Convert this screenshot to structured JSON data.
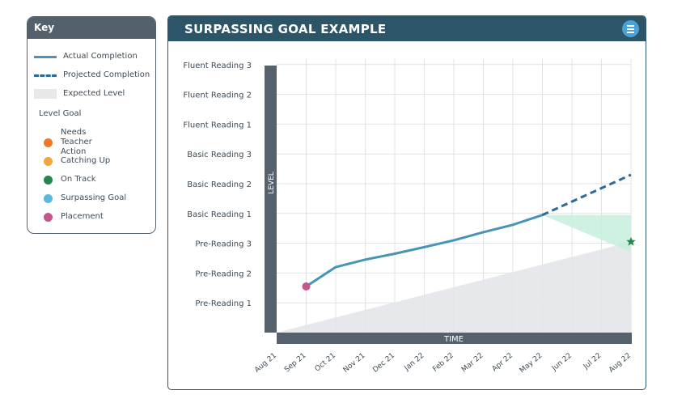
{
  "key": {
    "title": "Key",
    "actual": "Actual Completion",
    "projected": "Projected Completion",
    "expected": "Expected Level",
    "level_goal": "Level Goal",
    "needs": "Needs Teacher Action",
    "catching": "Catching Up",
    "ontrack": "On Track",
    "surpassing": "Surpassing Goal",
    "placement": "Placement",
    "colors": {
      "needs": "#ec7a2a",
      "catching": "#f0a83c",
      "ontrack": "#27854f",
      "surpassing": "#5ab8e0",
      "placement": "#c4568c",
      "actual": "#4a93b8",
      "projected": "#2f6a94"
    }
  },
  "panel": {
    "title": "SURPASSING GOAL EXAMPLE",
    "menu_icon": "hamburger-menu-icon"
  },
  "chart_data": {
    "type": "line",
    "title": "SURPASSING GOAL EXAMPLE",
    "xlabel": "TIME",
    "ylabel": "LEVEL",
    "categories": [
      "Aug 21",
      "Sep 21",
      "Oct 21",
      "Nov 21",
      "Dec 21",
      "Jan 22",
      "Feb 22",
      "Mar 22",
      "Apr 22",
      "May 22",
      "Jun 22",
      "Jul 22",
      "Aug 22"
    ],
    "levels": [
      "Pre-Reading 1",
      "Pre-Reading 2",
      "Pre-Reading 3",
      "Basic Reading 1",
      "Basic Reading 2",
      "Basic Reading 3",
      "Fluent Reading 1",
      "Fluent Reading 2",
      "Fluent Reading 3"
    ],
    "grid": true,
    "series": [
      {
        "name": "Actual Completion",
        "style": "solid",
        "x": [
          1,
          2,
          3,
          4,
          5,
          6,
          7,
          8,
          9
        ],
        "y": [
          1.55,
          2.2,
          2.45,
          2.65,
          2.87,
          3.1,
          3.37,
          3.62,
          3.95
        ]
      },
      {
        "name": "Projected Completion",
        "style": "dashed",
        "x": [
          9,
          10,
          11,
          12
        ],
        "y": [
          3.95,
          4.4,
          4.85,
          5.3
        ]
      }
    ],
    "expected_level": {
      "x": [
        0,
        12
      ],
      "y": [
        0,
        3.05
      ]
    },
    "surpassing_region": {
      "x": [
        9,
        12,
        12
      ],
      "y": [
        3.95,
        3.95,
        2.7
      ]
    },
    "placement": {
      "x": 1,
      "y": 1.55
    },
    "goal": {
      "x": 12,
      "y": 3.05,
      "marker": "star"
    }
  }
}
